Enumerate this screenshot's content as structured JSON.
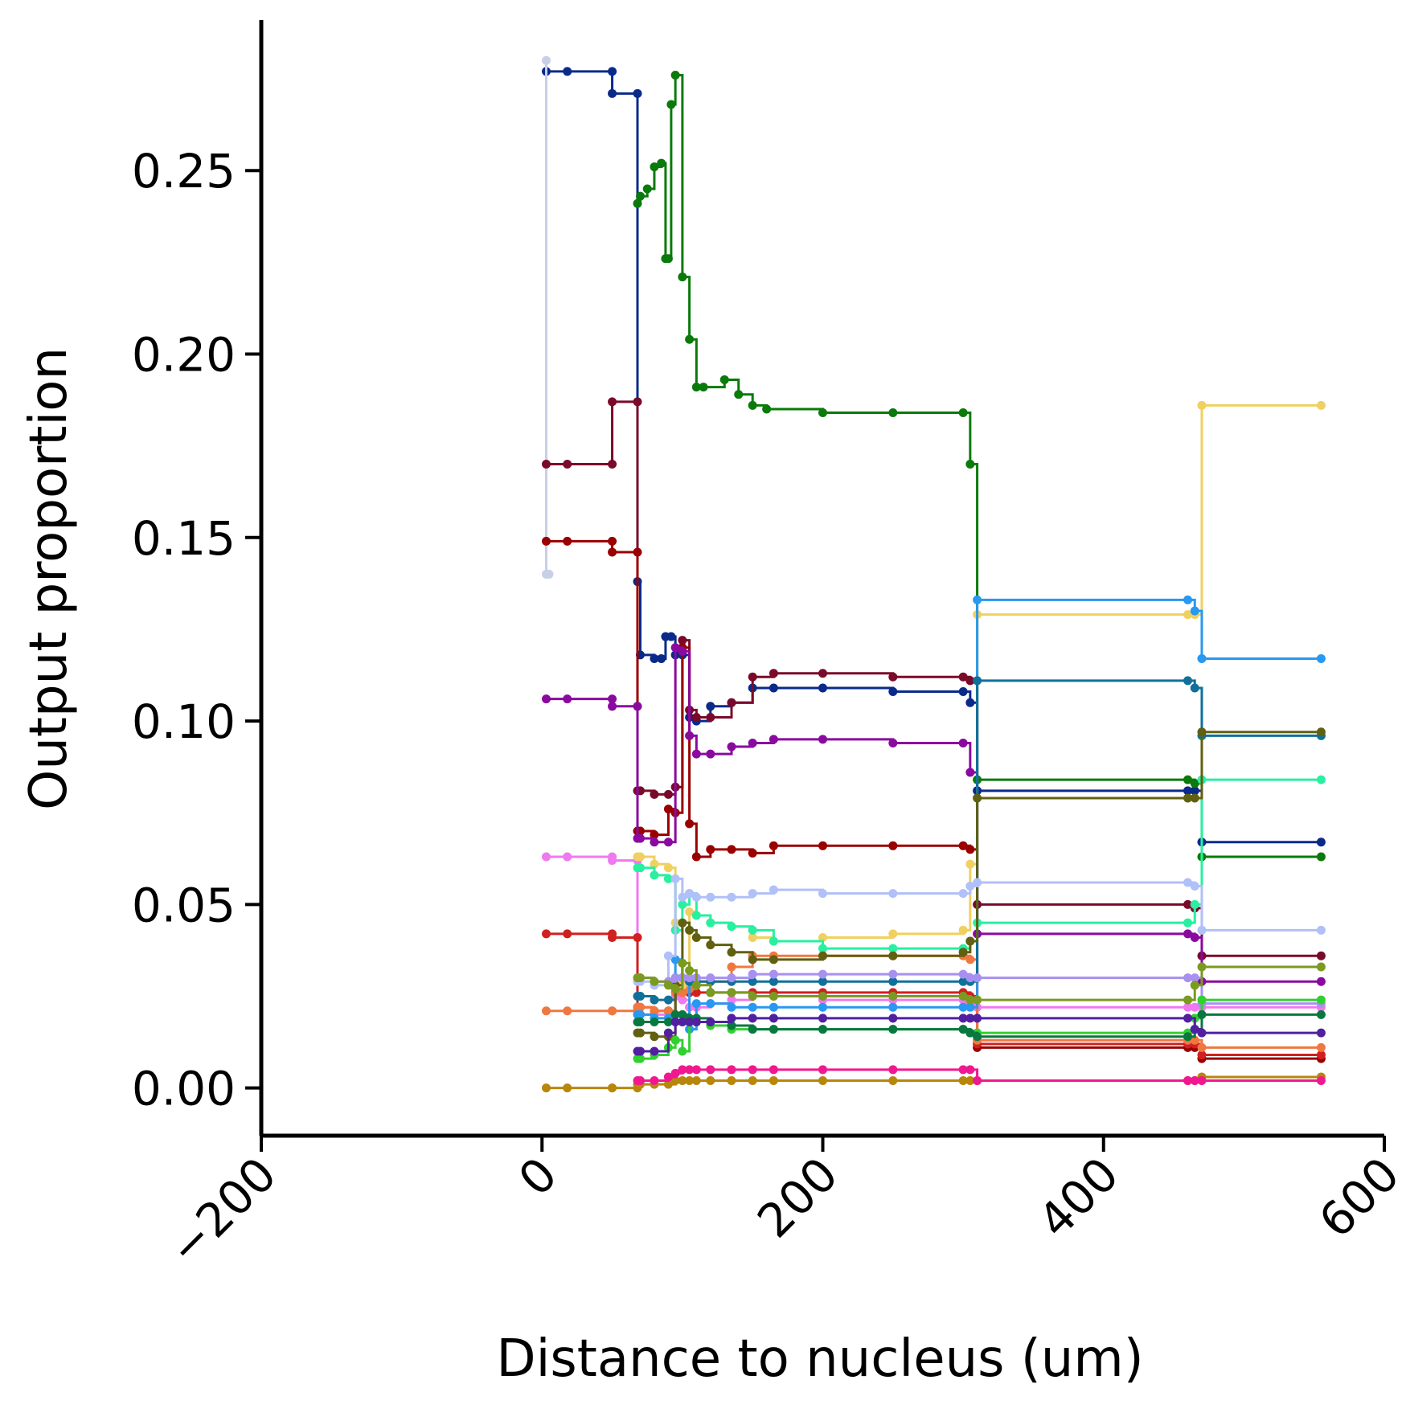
{
  "chart_data": {
    "type": "line",
    "title": "",
    "xlabel": "Distance to nucleus (um)",
    "ylabel": "Output proportion",
    "xlim": [
      -200,
      600
    ],
    "ylim": [
      -0.013,
      0.291
    ],
    "xticks": [
      -200,
      0,
      200,
      400,
      600
    ],
    "xtick_labels": [
      "−200",
      "0",
      "200",
      "400",
      "600"
    ],
    "yticks": [
      0.0,
      0.05,
      0.1,
      0.15,
      0.2,
      0.25
    ],
    "ytick_labels": [
      "0.00",
      "0.05",
      "0.10",
      "0.15",
      "0.20",
      "0.25"
    ],
    "grid": false,
    "legend": "none",
    "series": [
      {
        "color": "#0a2a8a",
        "x": [
          3,
          18,
          50,
          50,
          68,
          68,
          70,
          80,
          85,
          88,
          92,
          95,
          100,
          105,
          110,
          120,
          135,
          150,
          165,
          200,
          250,
          300,
          305,
          310,
          460,
          465,
          470,
          555
        ],
        "y": [
          0.277,
          0.277,
          0.277,
          0.271,
          0.271,
          0.138,
          0.118,
          0.117,
          0.117,
          0.123,
          0.123,
          0.118,
          0.118,
          0.101,
          0.1,
          0.104,
          0.105,
          0.109,
          0.109,
          0.109,
          0.108,
          0.108,
          0.105,
          0.081,
          0.081,
          0.081,
          0.067,
          0.067
        ]
      },
      {
        "color": "#c8d0e8",
        "x": [
          3,
          3,
          5
        ],
        "y": [
          0.28,
          0.14,
          0.14
        ]
      },
      {
        "color": "#0a7a0a",
        "x": [
          68,
          70,
          75,
          80,
          85,
          88,
          90,
          92,
          95,
          100,
          105,
          110,
          115,
          130,
          140,
          150,
          160,
          200,
          250,
          300,
          305,
          310,
          460,
          465,
          470,
          555
        ],
        "y": [
          0.241,
          0.243,
          0.245,
          0.251,
          0.252,
          0.226,
          0.226,
          0.268,
          0.276,
          0.221,
          0.204,
          0.191,
          0.191,
          0.193,
          0.189,
          0.186,
          0.185,
          0.184,
          0.184,
          0.184,
          0.17,
          0.084,
          0.084,
          0.083,
          0.063,
          0.063
        ]
      },
      {
        "color": "#7a0a2a",
        "x": [
          3,
          18,
          50,
          50,
          68,
          68,
          70,
          80,
          90,
          95,
          100,
          105,
          110,
          120,
          135,
          150,
          165,
          200,
          250,
          300,
          305,
          310,
          460,
          465,
          470,
          555
        ],
        "y": [
          0.17,
          0.17,
          0.17,
          0.187,
          0.187,
          0.081,
          0.081,
          0.08,
          0.08,
          0.082,
          0.122,
          0.103,
          0.101,
          0.101,
          0.105,
          0.112,
          0.113,
          0.113,
          0.112,
          0.112,
          0.111,
          0.05,
          0.05,
          0.049,
          0.036,
          0.036
        ]
      },
      {
        "color": "#9a0000",
        "x": [
          3,
          18,
          50,
          50,
          68,
          68,
          70,
          80,
          90,
          95,
          100,
          105,
          110,
          120,
          135,
          150,
          165,
          200,
          250,
          300,
          305,
          310,
          460,
          465,
          470,
          555
        ],
        "y": [
          0.149,
          0.149,
          0.149,
          0.146,
          0.146,
          0.07,
          0.07,
          0.069,
          0.076,
          0.075,
          0.12,
          0.072,
          0.063,
          0.065,
          0.065,
          0.064,
          0.066,
          0.066,
          0.066,
          0.066,
          0.065,
          0.011,
          0.011,
          0.011,
          0.008,
          0.008
        ]
      },
      {
        "color": "#8a0aa0",
        "x": [
          3,
          18,
          50,
          50,
          68,
          68,
          70,
          80,
          90,
          95,
          100,
          105,
          110,
          120,
          135,
          150,
          165,
          200,
          250,
          300,
          305,
          310,
          460,
          465,
          470,
          555
        ],
        "y": [
          0.106,
          0.106,
          0.106,
          0.104,
          0.104,
          0.068,
          0.068,
          0.067,
          0.067,
          0.12,
          0.119,
          0.096,
          0.091,
          0.091,
          0.093,
          0.094,
          0.095,
          0.095,
          0.094,
          0.094,
          0.086,
          0.042,
          0.042,
          0.041,
          0.029,
          0.029
        ]
      },
      {
        "color": "#f078f0",
        "x": [
          3,
          18,
          50,
          50,
          68,
          68,
          70,
          80,
          90,
          95,
          100,
          105,
          110,
          120,
          135,
          150,
          165,
          200,
          250,
          300,
          305,
          310,
          460,
          465,
          470,
          555
        ],
        "y": [
          0.063,
          0.063,
          0.063,
          0.062,
          0.062,
          0.02,
          0.02,
          0.02,
          0.02,
          0.025,
          0.024,
          0.022,
          0.022,
          0.023,
          0.024,
          0.025,
          0.025,
          0.024,
          0.024,
          0.024,
          0.023,
          0.022,
          0.022,
          0.022,
          0.022,
          0.022
        ]
      },
      {
        "color": "#d02020",
        "x": [
          3,
          18,
          50,
          50,
          68,
          68,
          70,
          80,
          90,
          95,
          100,
          105,
          110,
          120,
          135,
          150,
          165,
          200,
          250,
          300,
          305,
          310,
          460,
          465,
          470,
          555
        ],
        "y": [
          0.042,
          0.042,
          0.042,
          0.041,
          0.041,
          0.022,
          0.022,
          0.021,
          0.021,
          0.028,
          0.028,
          0.026,
          0.026,
          0.026,
          0.026,
          0.026,
          0.026,
          0.026,
          0.026,
          0.026,
          0.025,
          0.012,
          0.012,
          0.012,
          0.009,
          0.009
        ]
      },
      {
        "color": "#f07840",
        "x": [
          3,
          18,
          50,
          50,
          68,
          68,
          70,
          80,
          90,
          95,
          100,
          105,
          110,
          120,
          135,
          150,
          165,
          200,
          250,
          300,
          305,
          310,
          460,
          465,
          470,
          555
        ],
        "y": [
          0.021,
          0.021,
          0.021,
          0.021,
          0.021,
          0.022,
          0.022,
          0.021,
          0.021,
          0.026,
          0.026,
          0.027,
          0.029,
          0.029,
          0.033,
          0.036,
          0.036,
          0.036,
          0.036,
          0.036,
          0.035,
          0.013,
          0.013,
          0.013,
          0.011,
          0.011
        ]
      },
      {
        "color": "#b8860b",
        "x": [
          3,
          18,
          50,
          50,
          68,
          68,
          70,
          80,
          90,
          95,
          100,
          105,
          110,
          120,
          135,
          150,
          165,
          200,
          250,
          300,
          305,
          310,
          460,
          465,
          470,
          555
        ],
        "y": [
          0.0,
          0.0,
          0.0,
          0.0,
          0.0,
          0.001,
          0.001,
          0.001,
          0.001,
          0.002,
          0.002,
          0.002,
          0.002,
          0.002,
          0.002,
          0.002,
          0.002,
          0.002,
          0.002,
          0.002,
          0.002,
          0.002,
          0.002,
          0.002,
          0.003,
          0.003
        ]
      },
      {
        "color": "#f0d060",
        "x": [
          68,
          70,
          80,
          90,
          95,
          100,
          105,
          110,
          120,
          135,
          150,
          165,
          200,
          250,
          300,
          305,
          310,
          460,
          465,
          470,
          555
        ],
        "y": [
          0.063,
          0.063,
          0.061,
          0.06,
          0.045,
          0.028,
          0.048,
          0.047,
          0.045,
          0.044,
          0.041,
          0.04,
          0.041,
          0.042,
          0.043,
          0.061,
          0.129,
          0.129,
          0.129,
          0.186,
          0.186
        ]
      },
      {
        "color": "#2898f0",
        "x": [
          68,
          70,
          80,
          90,
          95,
          100,
          105,
          110,
          120,
          135,
          150,
          165,
          200,
          250,
          300,
          305,
          310,
          460,
          465,
          470,
          555
        ],
        "y": [
          0.02,
          0.02,
          0.019,
          0.019,
          0.035,
          0.03,
          0.016,
          0.023,
          0.023,
          0.022,
          0.022,
          0.022,
          0.022,
          0.022,
          0.022,
          0.022,
          0.133,
          0.133,
          0.13,
          0.117,
          0.117
        ]
      },
      {
        "color": "#10709a",
        "x": [
          68,
          70,
          80,
          90,
          95,
          100,
          105,
          110,
          120,
          135,
          150,
          165,
          200,
          250,
          300,
          305,
          310,
          460,
          465,
          470,
          555
        ],
        "y": [
          0.025,
          0.025,
          0.024,
          0.024,
          0.03,
          0.03,
          0.029,
          0.029,
          0.029,
          0.029,
          0.029,
          0.029,
          0.029,
          0.029,
          0.029,
          0.029,
          0.111,
          0.111,
          0.109,
          0.096,
          0.096
        ]
      },
      {
        "color": "#28f0a0",
        "x": [
          68,
          70,
          80,
          90,
          95,
          100,
          105,
          110,
          120,
          135,
          150,
          165,
          200,
          250,
          300,
          305,
          310,
          460,
          465,
          470,
          555
        ],
        "y": [
          0.06,
          0.06,
          0.058,
          0.057,
          0.043,
          0.05,
          0.053,
          0.047,
          0.045,
          0.044,
          0.043,
          0.04,
          0.038,
          0.038,
          0.038,
          0.04,
          0.045,
          0.045,
          0.05,
          0.084,
          0.084
        ]
      },
      {
        "color": "#606010",
        "x": [
          68,
          70,
          80,
          90,
          95,
          100,
          105,
          110,
          120,
          135,
          150,
          165,
          200,
          250,
          300,
          305,
          310,
          460,
          465,
          470,
          555
        ],
        "y": [
          0.015,
          0.015,
          0.014,
          0.014,
          0.028,
          0.045,
          0.043,
          0.041,
          0.039,
          0.037,
          0.035,
          0.035,
          0.036,
          0.036,
          0.037,
          0.04,
          0.079,
          0.079,
          0.079,
          0.097,
          0.097
        ]
      },
      {
        "color": "#b0c0f8",
        "x": [
          68,
          70,
          80,
          90,
          95,
          100,
          105,
          110,
          120,
          135,
          150,
          165,
          200,
          250,
          300,
          305,
          310,
          460,
          465,
          470,
          555
        ],
        "y": [
          0.029,
          0.029,
          0.028,
          0.036,
          0.057,
          0.052,
          0.053,
          0.052,
          0.052,
          0.052,
          0.053,
          0.054,
          0.053,
          0.053,
          0.053,
          0.055,
          0.056,
          0.056,
          0.055,
          0.043,
          0.043
        ]
      },
      {
        "color": "#a890f0",
        "x": [
          68,
          70,
          80,
          90,
          95,
          100,
          105,
          110,
          120,
          135,
          150,
          165,
          200,
          250,
          300,
          305,
          310,
          460,
          465,
          470,
          555
        ],
        "y": [
          0.03,
          0.03,
          0.029,
          0.029,
          0.03,
          0.03,
          0.03,
          0.03,
          0.03,
          0.03,
          0.031,
          0.031,
          0.031,
          0.031,
          0.031,
          0.03,
          0.03,
          0.03,
          0.03,
          0.023,
          0.023
        ]
      },
      {
        "color": "#7a9a20",
        "x": [
          68,
          70,
          80,
          90,
          95,
          100,
          105,
          110,
          120,
          135,
          150,
          165,
          200,
          250,
          300,
          305,
          310,
          460,
          465,
          470,
          555
        ],
        "y": [
          0.03,
          0.03,
          0.029,
          0.028,
          0.027,
          0.034,
          0.032,
          0.028,
          0.026,
          0.026,
          0.025,
          0.025,
          0.025,
          0.025,
          0.025,
          0.024,
          0.024,
          0.024,
          0.028,
          0.033,
          0.033
        ]
      },
      {
        "color": "#30d030",
        "x": [
          68,
          70,
          80,
          90,
          95,
          100,
          105,
          110,
          120,
          135,
          150,
          165,
          200,
          250,
          300,
          305,
          310,
          460,
          465,
          470,
          555
        ],
        "y": [
          0.008,
          0.008,
          0.009,
          0.011,
          0.013,
          0.01,
          0.018,
          0.018,
          0.017,
          0.016,
          0.016,
          0.016,
          0.016,
          0.016,
          0.016,
          0.015,
          0.015,
          0.015,
          0.019,
          0.024,
          0.024
        ]
      },
      {
        "color": "#087840",
        "x": [
          68,
          70,
          80,
          90,
          95,
          100,
          105,
          110,
          120,
          135,
          150,
          165,
          200,
          250,
          300,
          305,
          310,
          460,
          465,
          470,
          555
        ],
        "y": [
          0.018,
          0.018,
          0.018,
          0.018,
          0.02,
          0.02,
          0.019,
          0.019,
          0.018,
          0.017,
          0.016,
          0.016,
          0.016,
          0.016,
          0.016,
          0.015,
          0.014,
          0.014,
          0.016,
          0.02,
          0.02
        ]
      },
      {
        "color": "#5020a0",
        "x": [
          68,
          70,
          80,
          90,
          95,
          100,
          105,
          110,
          120,
          135,
          150,
          165,
          200,
          250,
          300,
          305,
          310,
          460,
          465,
          470,
          555
        ],
        "y": [
          0.01,
          0.01,
          0.01,
          0.015,
          0.018,
          0.018,
          0.018,
          0.018,
          0.018,
          0.019,
          0.019,
          0.019,
          0.019,
          0.019,
          0.019,
          0.019,
          0.019,
          0.019,
          0.016,
          0.015,
          0.015
        ]
      },
      {
        "color": "#f01890",
        "x": [
          68,
          70,
          80,
          90,
          95,
          100,
          105,
          110,
          120,
          135,
          150,
          165,
          200,
          250,
          300,
          305,
          310,
          460,
          465,
          470,
          555
        ],
        "y": [
          0.002,
          0.002,
          0.002,
          0.003,
          0.004,
          0.005,
          0.005,
          0.005,
          0.005,
          0.005,
          0.005,
          0.005,
          0.005,
          0.005,
          0.005,
          0.005,
          0.002,
          0.002,
          0.002,
          0.002,
          0.002
        ]
      }
    ]
  }
}
